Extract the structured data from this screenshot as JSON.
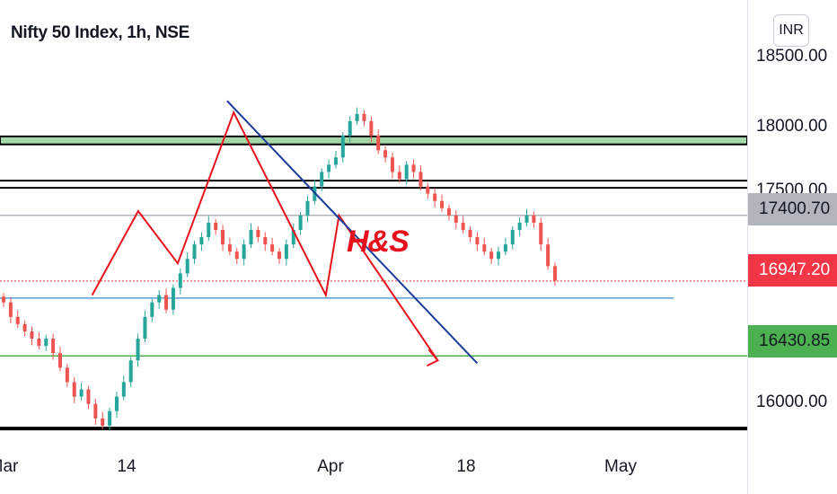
{
  "chart_data": {
    "type": "candlestick",
    "title": "Nifty 50 Index, 1h, NSE",
    "currency": "INR",
    "y_ticks": [
      "18500.00",
      "18000.00",
      "17500.00",
      "16000.00"
    ],
    "x_ticks": [
      "Mar",
      "14",
      "Apr",
      "18",
      "May"
    ],
    "ylim": [
      15800,
      18700
    ],
    "price_labels": [
      {
        "value": "17400.70",
        "bg": "#b2b5be",
        "fg": "#131722"
      },
      {
        "value": "16947.20",
        "bg": "#f23645",
        "fg": "#ffffff"
      },
      {
        "value": "16430.85",
        "bg": "#4caf50",
        "fg": "#131722"
      }
    ],
    "pattern_label": "H&S",
    "levels": [
      {
        "name": "resistance-zone",
        "low": 17890,
        "high": 17945,
        "color": "#a5d6a7"
      },
      {
        "name": "resistance-line-1",
        "price": 17640,
        "color": "#000000"
      },
      {
        "name": "resistance-line-2",
        "price": 17590,
        "color": "#000000"
      },
      {
        "name": "last-price-line",
        "price": 17400.7,
        "color": "#b2b5be"
      },
      {
        "name": "current-price-line",
        "price": 16947.2,
        "color": "#f23645"
      },
      {
        "name": "neckline",
        "price": 16830,
        "color": "#5b9bd5"
      },
      {
        "name": "target-line",
        "price": 16430.85,
        "color": "#4caf50"
      },
      {
        "name": "support-line",
        "price": 15930,
        "color": "#000000"
      }
    ],
    "pattern_points": [
      {
        "date": "Mar 16",
        "price": 16850
      },
      {
        "date": "Mar 23",
        "price": 17430
      },
      {
        "date": "Mar 29",
        "price": 17070
      },
      {
        "date": "Apr 5",
        "price": 18110
      },
      {
        "date": "Apr 19",
        "price": 16850
      },
      {
        "date": "Apr 21",
        "price": 17400
      },
      {
        "date": "May 6",
        "price": 16400
      }
    ],
    "trendline": [
      {
        "date": "Apr 4",
        "price": 18190
      },
      {
        "date": "May 12",
        "price": 16380
      }
    ],
    "candles_closes": [
      16800,
      16700,
      16650,
      16600,
      16550,
      16500,
      16550,
      16450,
      16350,
      16250,
      16150,
      16200,
      16100,
      16000,
      15950,
      16050,
      16150,
      16250,
      16400,
      16550,
      16700,
      16800,
      16850,
      16750,
      16900,
      17000,
      17100,
      17200,
      17250,
      17350,
      17300,
      17200,
      17150,
      17100,
      17200,
      17300,
      17250,
      17200,
      17150,
      17100,
      17200,
      17300,
      17400,
      17500,
      17600,
      17700,
      17750,
      17800,
      17950,
      18050,
      18100,
      18050,
      17950,
      17850,
      17800,
      17700,
      17650,
      17750,
      17700,
      17600,
      17550,
      17500,
      17450,
      17400,
      17350,
      17300,
      17250,
      17200,
      17150,
      17100,
      17150,
      17200,
      17300,
      17350,
      17400,
      17350,
      17200,
      17050,
      16950
    ]
  }
}
